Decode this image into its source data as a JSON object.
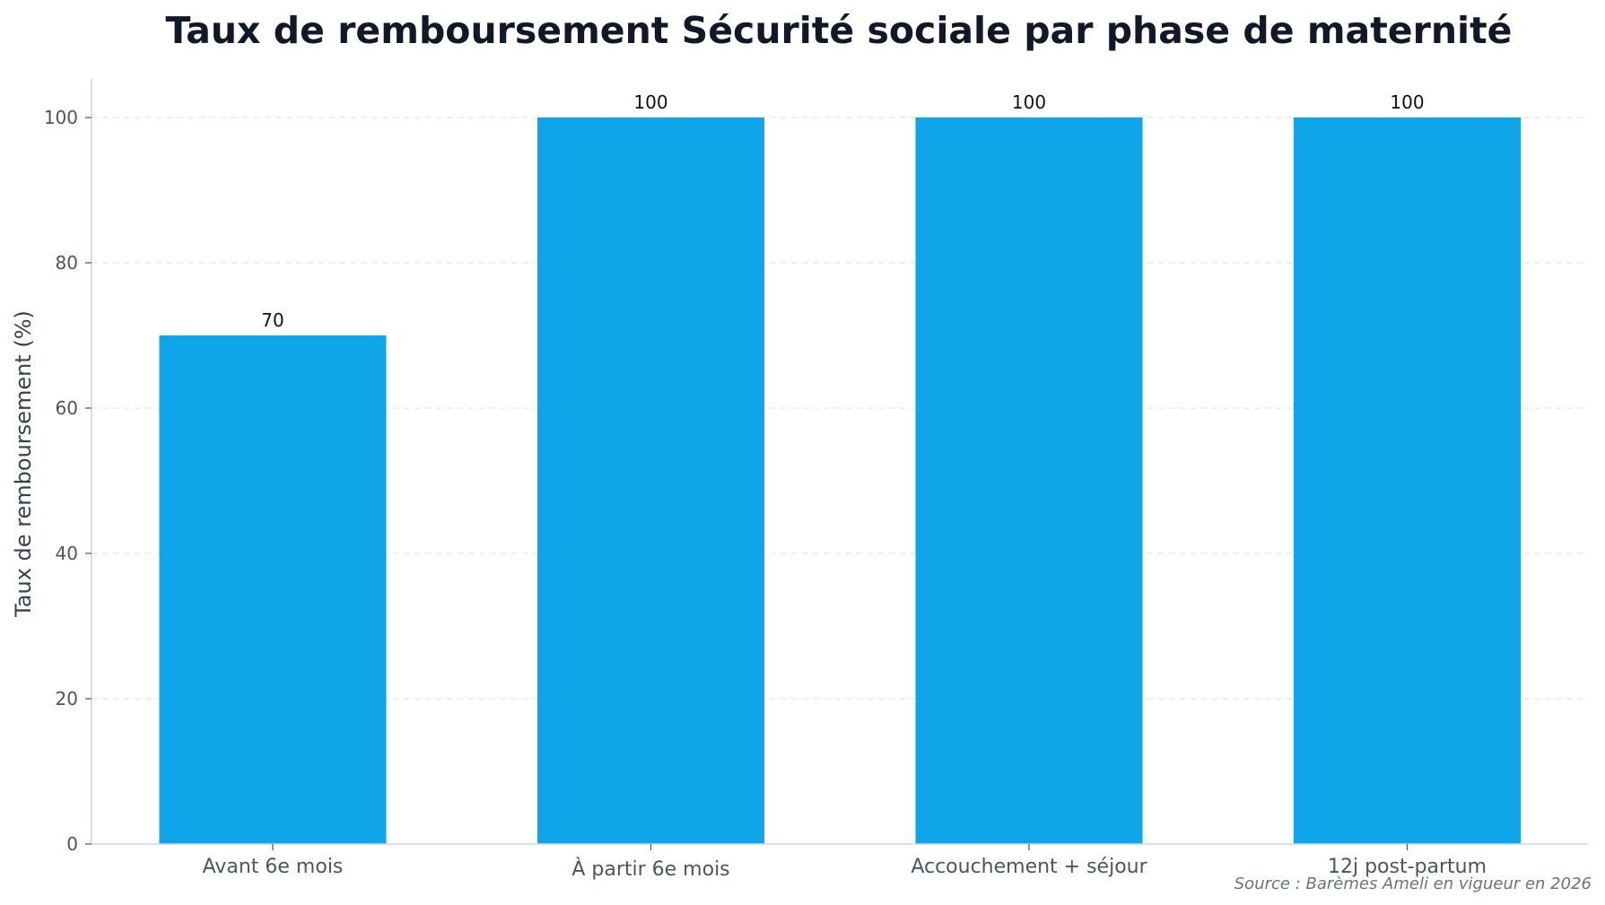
{
  "chart_data": {
    "type": "bar",
    "title": "Taux de remboursement Sécurité sociale par phase de maternité",
    "xlabel": "",
    "ylabel": "Taux de remboursement (%)",
    "categories": [
      "Avant 6e mois",
      "À partir 6e mois",
      "Accouchement + séjour",
      "12j post-partum"
    ],
    "values": [
      70,
      100,
      100,
      100
    ],
    "value_labels": [
      "70",
      "100",
      "100",
      "100"
    ],
    "ylim": [
      0,
      105
    ],
    "yticks": [
      0,
      20,
      40,
      60,
      80,
      100
    ],
    "ytick_labels": [
      "0",
      "20",
      "40",
      "60",
      "80",
      "100"
    ],
    "grid": true,
    "legend": "none",
    "source": "Source : Barèmes Ameli en vigueur en 2026",
    "colors": {
      "bar": "#0ea5e9",
      "grid": "#e5e7eb",
      "axis": "#cbd5e1",
      "title": "#111827"
    }
  }
}
